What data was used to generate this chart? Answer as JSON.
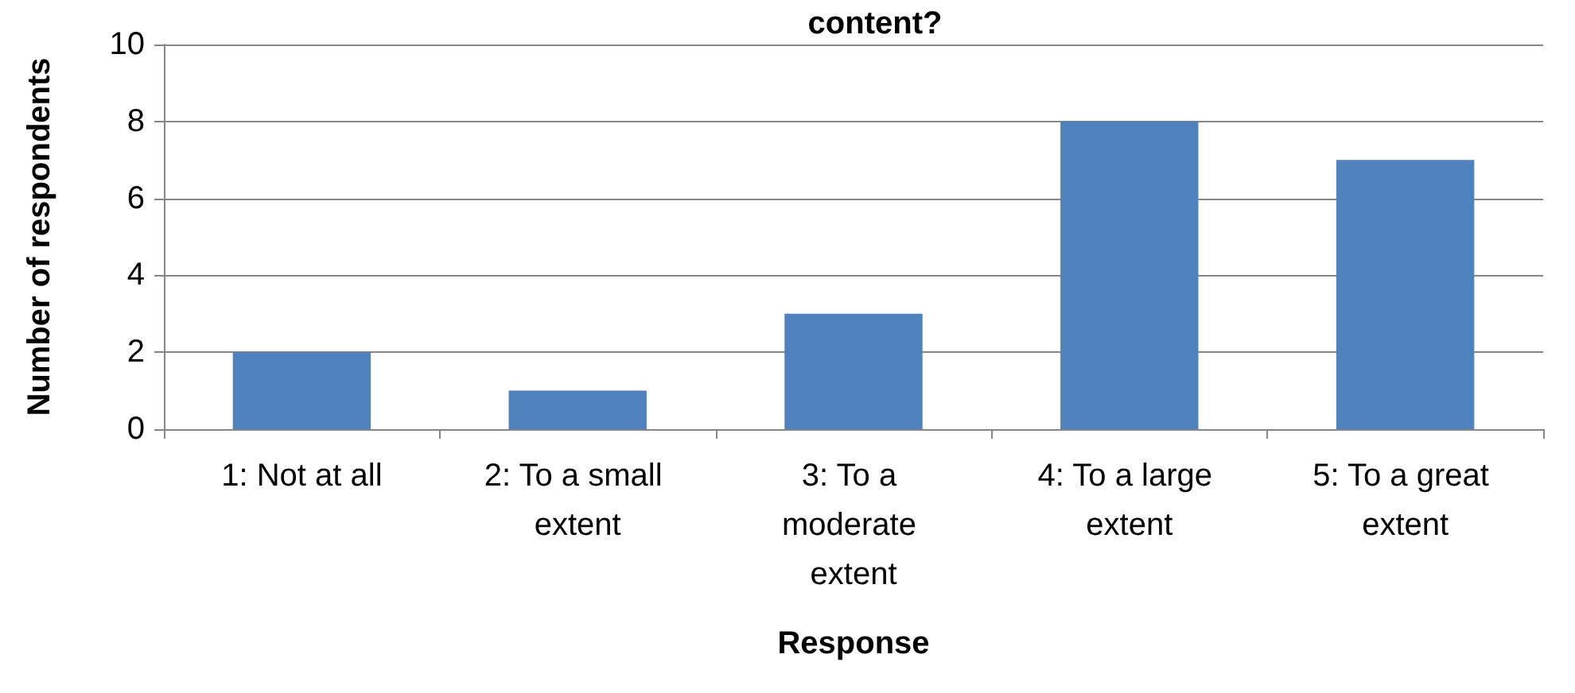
{
  "chart_data": {
    "type": "bar",
    "title": "content?",
    "xlabel": "Response",
    "ylabel": "Number of respondents",
    "categories": [
      "1: Not at all",
      "2: To a small extent",
      "3: To a moderate extent",
      "4: To a large extent",
      "5: To a great extent"
    ],
    "values": [
      2,
      1,
      3,
      8,
      7
    ],
    "color": "#4f81bd",
    "ylim": [
      0,
      10
    ],
    "yticks": [
      0,
      2,
      4,
      6,
      8,
      10
    ],
    "grid": "y"
  }
}
